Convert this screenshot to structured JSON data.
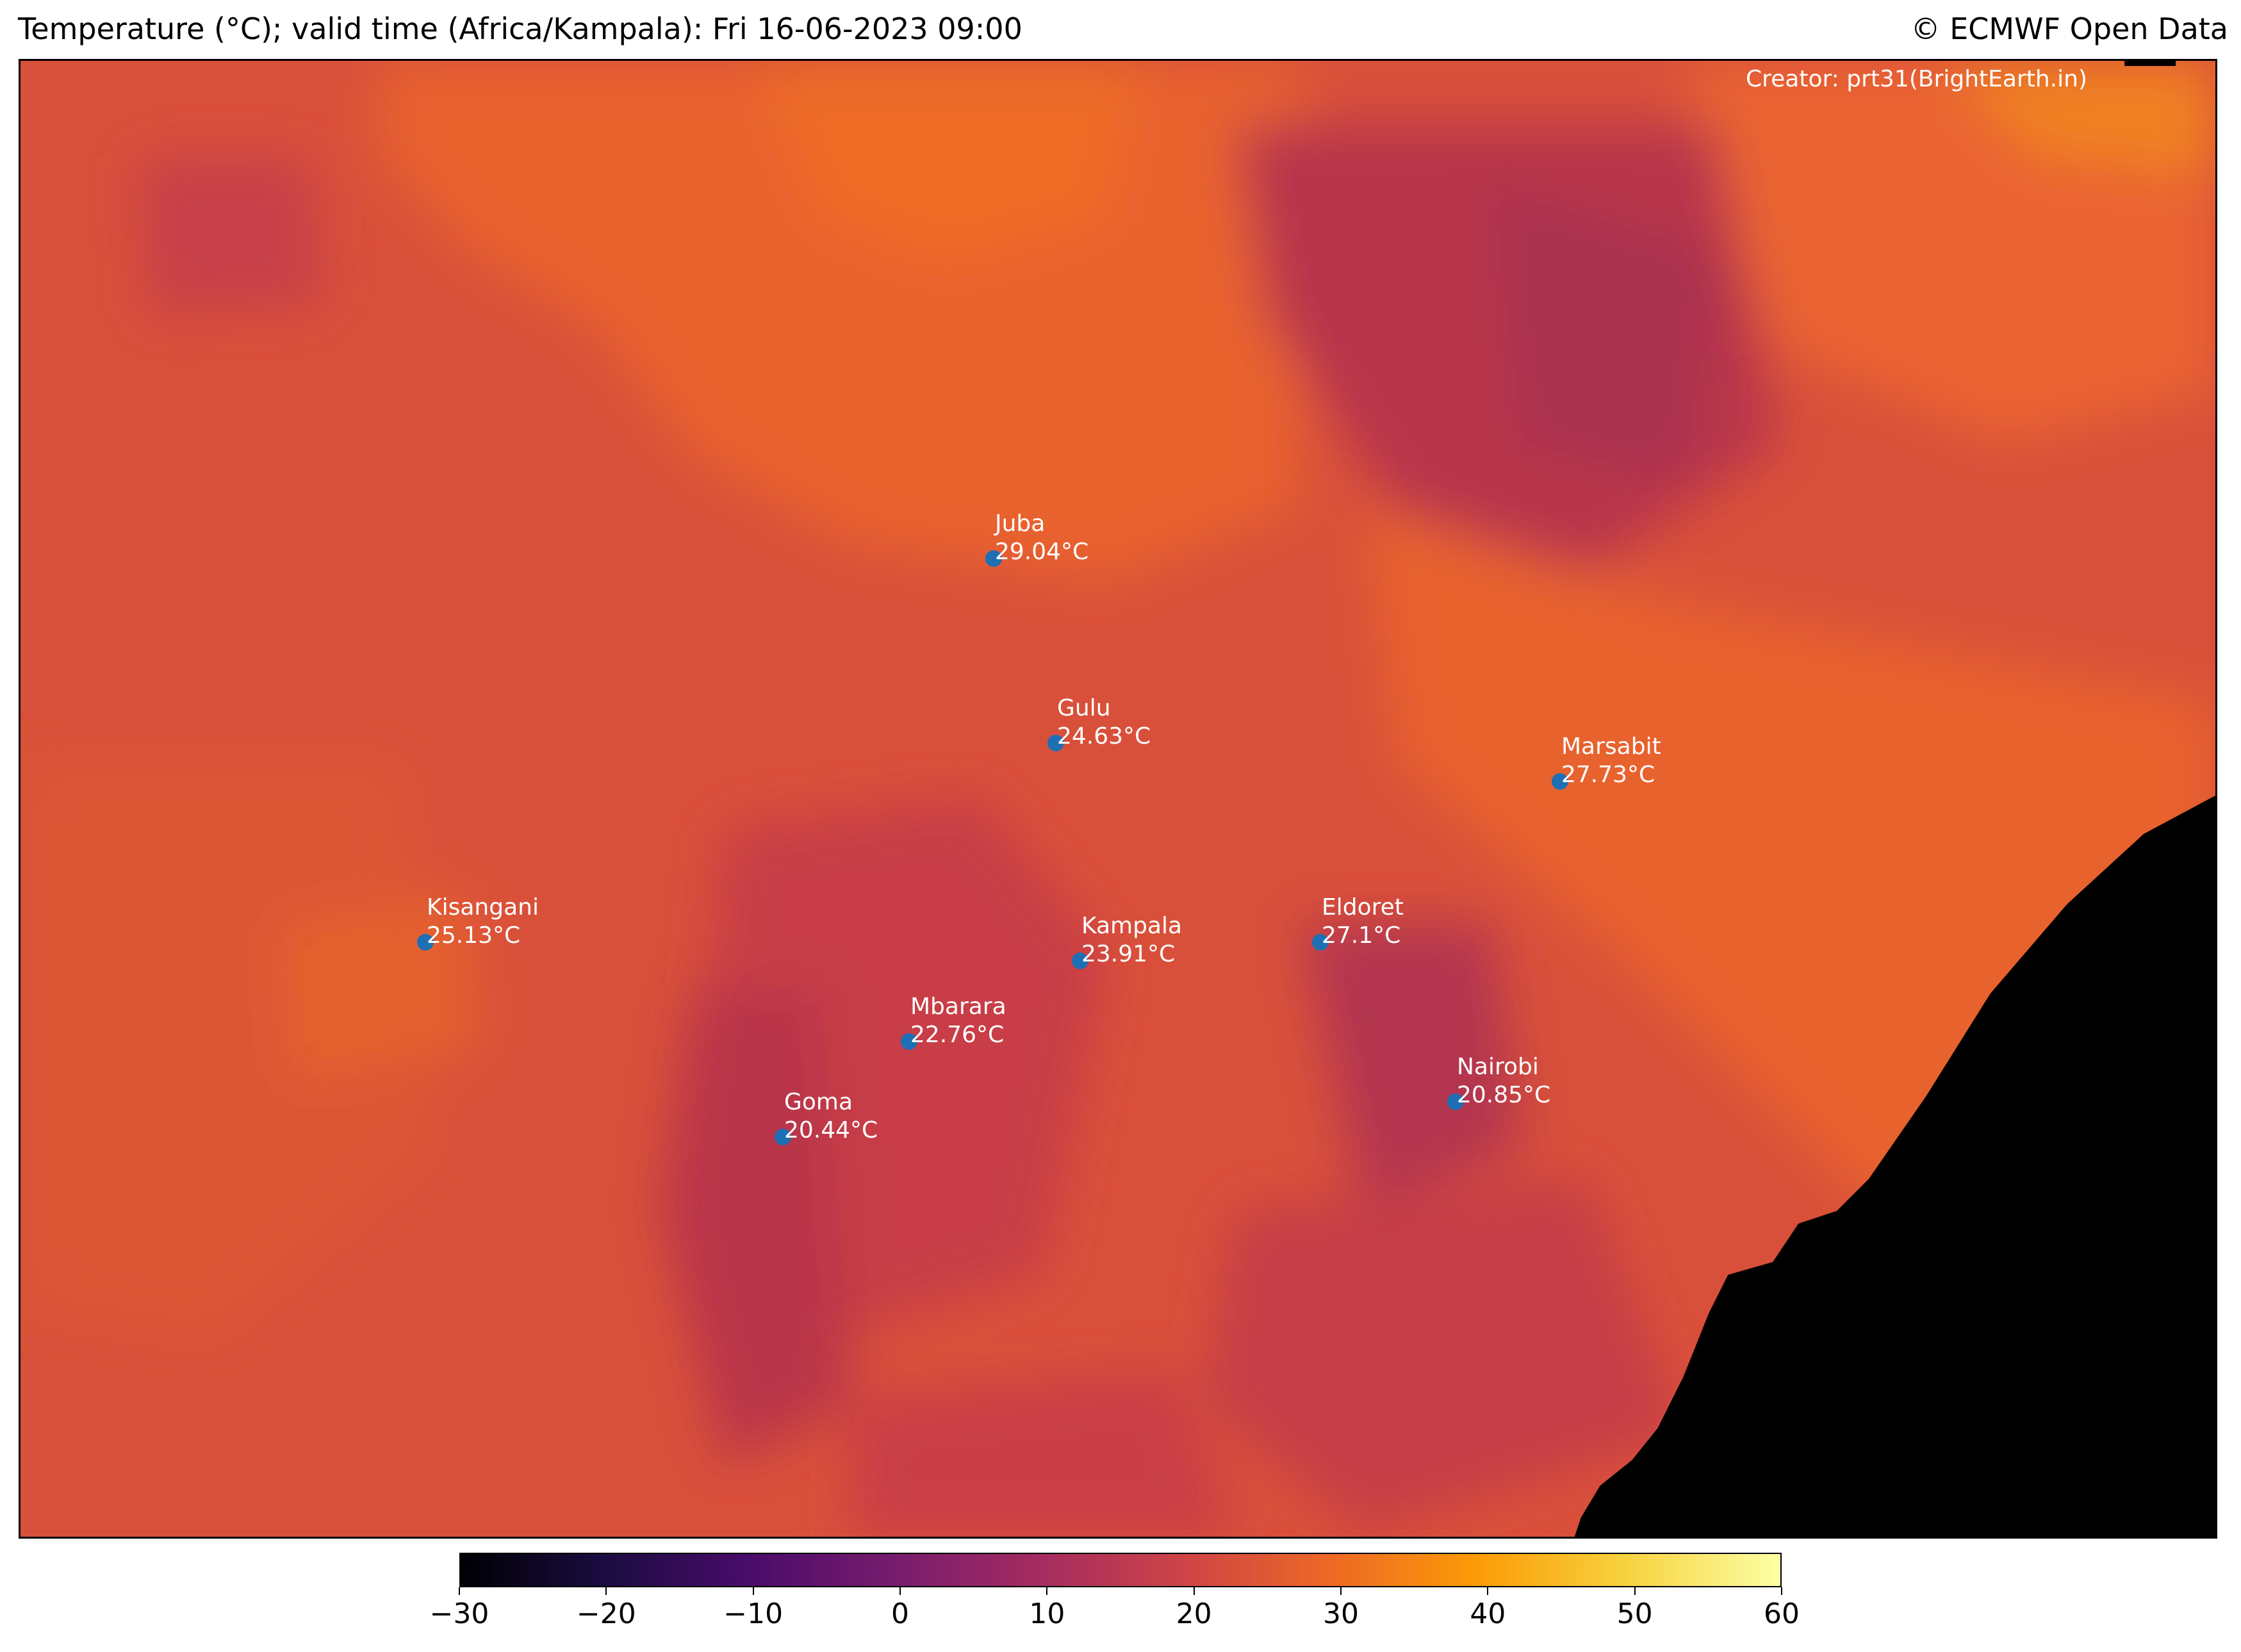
{
  "header": {
    "title": "Temperature (°C); valid time (Africa/Kampala): Fri 16-06-2023 09:00",
    "copyright": "© ECMWF Open Data"
  },
  "map": {
    "creator": "Creator: prt31(BrightEarth.in)",
    "cities": [
      {
        "name": "Juba",
        "temp": "29.04°C"
      },
      {
        "name": "Gulu",
        "temp": "24.63°C"
      },
      {
        "name": "Marsabit",
        "temp": "27.73°C"
      },
      {
        "name": "Kisangani",
        "temp": "25.13°C"
      },
      {
        "name": "Kampala",
        "temp": "23.91°C"
      },
      {
        "name": "Eldoret",
        "temp": "27.1°C"
      },
      {
        "name": "Mbarara",
        "temp": "22.76°C"
      },
      {
        "name": "Nairobi",
        "temp": "20.85°C"
      },
      {
        "name": "Goma",
        "temp": "20.44°C"
      }
    ]
  },
  "colorbar": {
    "ticks": [
      "−30",
      "−20",
      "−10",
      "0",
      "10",
      "20",
      "30",
      "40",
      "50",
      "60"
    ],
    "range": [
      -30,
      60
    ],
    "colormap": "inferno",
    "ocean_color": "#000000",
    "dot_color": "#1f6fb4"
  }
}
